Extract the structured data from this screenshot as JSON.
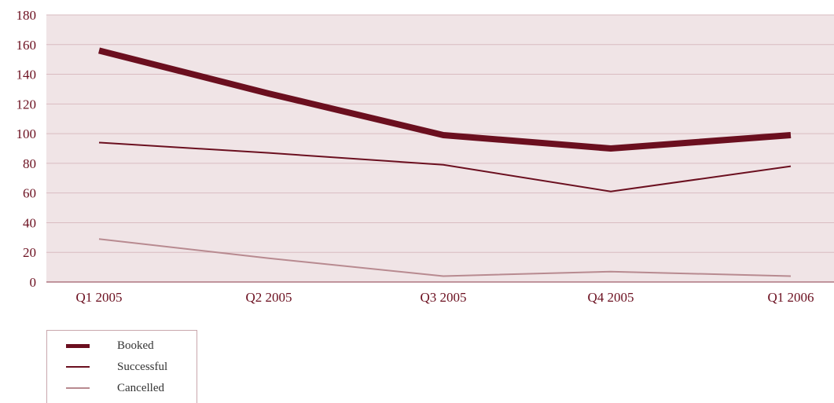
{
  "chart_data": {
    "type": "line",
    "categories": [
      "Q1 2005",
      "Q2 2005",
      "Q3 2005",
      "Q4 2005",
      "Q1 2006"
    ],
    "y_ticks": [
      "0",
      "20",
      "40",
      "60",
      "80",
      "100",
      "120",
      "140",
      "160",
      "180"
    ],
    "ylim": [
      0,
      180
    ],
    "grid": true,
    "legend_position": "bottom-left",
    "series": [
      {
        "name": "Booked",
        "values": [
          156,
          127,
          99,
          90,
          99
        ],
        "color": "#6b0f1f",
        "line_weight": "thick"
      },
      {
        "name": "Successful",
        "values": [
          94,
          87,
          79,
          61,
          78
        ],
        "color": "#6b0f1f",
        "line_weight": "medium"
      },
      {
        "name": "Cancelled",
        "values": [
          29,
          16,
          4,
          7,
          4
        ],
        "color": "#b88a90",
        "line_weight": "medium"
      }
    ]
  },
  "colors": {
    "plot_background": "#f0e4e6",
    "gridline": "#d9bcc1",
    "tick_label": "#6b0f1f",
    "axis": "#8a3a48"
  }
}
